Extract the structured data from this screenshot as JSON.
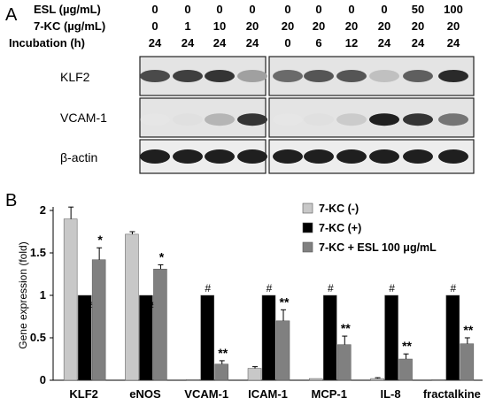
{
  "panelA": {
    "letter": "A",
    "headers": [
      {
        "label": "ESL (µg/mL)",
        "values": [
          "0",
          "0",
          "0",
          "0",
          "0",
          "0",
          "0",
          "0",
          "50",
          "100"
        ]
      },
      {
        "label": "7-KC (µg/mL)",
        "values": [
          "0",
          "1",
          "10",
          "20",
          "20",
          "20",
          "20",
          "20",
          "20",
          "20"
        ]
      },
      {
        "label": "Incubation (h)",
        "values": [
          "24",
          "24",
          "24",
          "24",
          "0",
          "6",
          "12",
          "24",
          "24",
          "24"
        ]
      }
    ],
    "blots": [
      {
        "label": "KLF2",
        "band_intensity": [
          0.75,
          0.8,
          0.85,
          0.35,
          0.6,
          0.7,
          0.7,
          0.2,
          0.65,
          0.9
        ]
      },
      {
        "label": "VCAM-1",
        "band_intensity": [
          0.0,
          0.05,
          0.25,
          0.85,
          0.0,
          0.05,
          0.15,
          0.95,
          0.85,
          0.55
        ]
      },
      {
        "label": "β-actin",
        "band_intensity": [
          0.95,
          0.95,
          0.95,
          0.95,
          0.95,
          0.95,
          0.95,
          0.95,
          0.95,
          0.95
        ]
      }
    ]
  },
  "panelB": {
    "letter": "B",
    "chart_data": {
      "type": "bar",
      "ylabel": "Gene expression (fold)",
      "xlabel": "",
      "ylim": [
        0,
        2
      ],
      "yticks": [
        "0",
        "0.5",
        "1",
        "1.5",
        "2"
      ],
      "categories": [
        "KLF2",
        "eNOS",
        "VCAM-1",
        "ICAM-1",
        "MCP-1",
        "IL-8",
        "fractalkine"
      ],
      "series": [
        {
          "name": "7-KC (-)",
          "color": "#c8c8c8",
          "values": [
            1.9,
            1.72,
            0.0,
            0.14,
            0.02,
            0.02,
            0.0
          ],
          "errors": [
            0.14,
            0.03,
            0.0,
            0.02,
            0.0,
            0.01,
            0.0
          ]
        },
        {
          "name": "7-KC (+)",
          "color": "#000000",
          "values": [
            1.0,
            1.0,
            1.0,
            1.0,
            1.0,
            1.0,
            1.0
          ],
          "errors": [
            0,
            0,
            0,
            0,
            0,
            0,
            0
          ]
        },
        {
          "name": "7-KC + ESL 100 μg/mL",
          "color": "#808080",
          "values": [
            1.42,
            1.31,
            0.19,
            0.7,
            0.42,
            0.25,
            0.43
          ],
          "errors": [
            0.14,
            0.05,
            0.04,
            0.13,
            0.1,
            0.06,
            0.07
          ]
        }
      ],
      "annotations": {
        "black_bars": [
          "#",
          "#",
          "#",
          "#",
          "#",
          "#",
          "#"
        ],
        "esl_bars": [
          "*",
          "*",
          "**",
          "**",
          "**",
          "**",
          "**"
        ]
      },
      "legend_position": "top-right"
    }
  }
}
